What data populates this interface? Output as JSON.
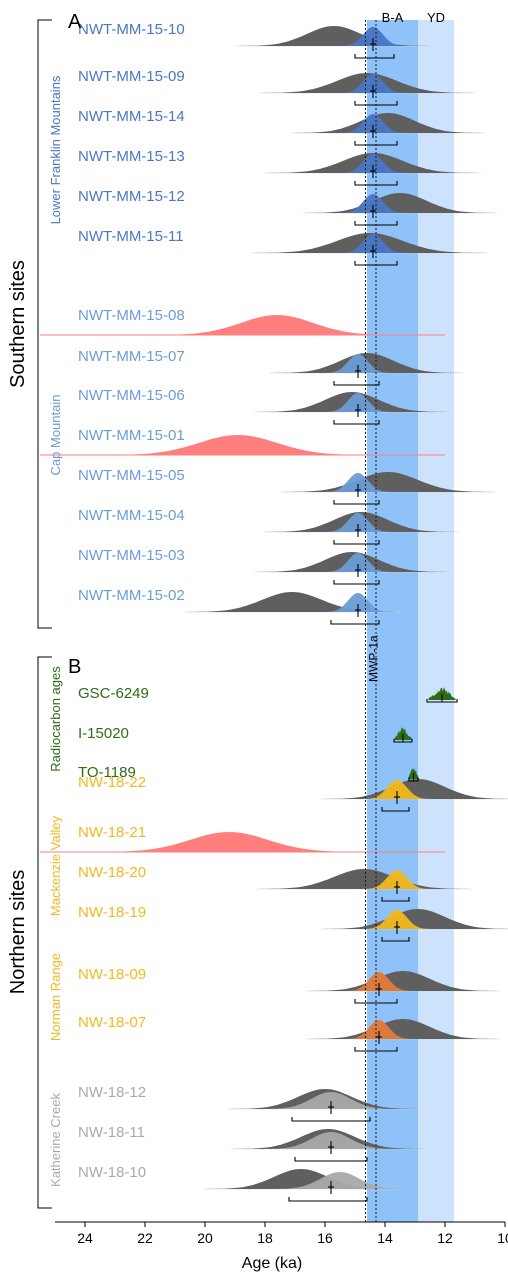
{
  "chart_data": {
    "type": "density-ridgeline",
    "xlabel": "Age (ka)",
    "xlim": [
      25,
      10
    ],
    "xticks": [
      24,
      22,
      20,
      18,
      16,
      14,
      12,
      10
    ],
    "bands": [
      {
        "label": "B-A",
        "from": 14.6,
        "to": 12.9,
        "color": "#90c2fa"
      },
      {
        "label": "YD",
        "from": 12.9,
        "to": 11.7,
        "color": "#cde3fd"
      }
    ],
    "lines": [
      {
        "label": "MWP-1a",
        "x": 14.65,
        "style": "dotted"
      },
      {
        "label": "",
        "x": 14.3,
        "style": "dotted"
      }
    ],
    "groups": [
      {
        "label": "Southern sites",
        "panel": "A"
      },
      {
        "label": "Northern sites",
        "panel": "B"
      }
    ],
    "subgroups": [
      {
        "label": "Lower Franklin Mountains",
        "color": "#4a76c4"
      },
      {
        "label": "Cap Mountain",
        "color": "#6a9cd6"
      },
      {
        "label": "Radiocarbon ages",
        "color": "#2f6a16"
      },
      {
        "label": "Mackenzie Valley",
        "color": "#f2b81d"
      },
      {
        "label": "Norman Range",
        "color": "#f2b81d"
      },
      {
        "label": "Katherine Creek",
        "color": "#a9a9a9"
      }
    ],
    "samples": [
      {
        "name": "NWT-MM-15-10",
        "color": "#4a76c4",
        "gray_peak": 15.7,
        "gray_sd": 0.9,
        "color_peak": 14.4,
        "mean": 14.4,
        "range": [
          15.0,
          13.7
        ]
      },
      {
        "name": "NWT-MM-15-09",
        "color": "#4a76c4",
        "gray_peak": 14.6,
        "gray_sd": 1.0,
        "color_peak": 14.4,
        "mean": 14.4,
        "range": [
          15.0,
          13.6
        ]
      },
      {
        "name": "NWT-MM-15-14",
        "color": "#4a76c4",
        "gray_peak": 13.9,
        "gray_sd": 0.9,
        "color_peak": 14.4,
        "mean": 14.4,
        "range": [
          15.0,
          13.6
        ]
      },
      {
        "name": "NWT-MM-15-13",
        "color": "#4a76c4",
        "gray_peak": 14.4,
        "gray_sd": 1.0,
        "color_peak": 14.4,
        "mean": 14.4,
        "range": [
          15.0,
          13.6
        ]
      },
      {
        "name": "NWT-MM-15-12",
        "color": "#4a76c4",
        "gray_peak": 13.5,
        "gray_sd": 0.9,
        "color_peak": 14.4,
        "mean": 14.4,
        "range": [
          15.0,
          13.6
        ]
      },
      {
        "name": "NWT-MM-15-11",
        "color": "#4a76c4",
        "gray_peak": 14.5,
        "gray_sd": 1.1,
        "color_peak": 14.4,
        "mean": 14.4,
        "range": [
          15.0,
          13.6
        ]
      },
      {
        "name": "NWT-MM-15-08",
        "color": "#6a9cd6",
        "outlier": true,
        "red_peak": 17.6,
        "red_sd": 1.2
      },
      {
        "name": "NWT-MM-15-07",
        "color": "#6a9cd6",
        "gray_peak": 14.6,
        "gray_sd": 0.9,
        "color_peak": 14.9,
        "mean": 14.9,
        "range": [
          15.7,
          14.2
        ]
      },
      {
        "name": "NWT-MM-15-06",
        "color": "#6a9cd6",
        "gray_peak": 15.1,
        "gray_sd": 0.9,
        "color_peak": 14.9,
        "mean": 14.9,
        "range": [
          15.7,
          14.2
        ]
      },
      {
        "name": "NWT-MM-15-01",
        "color": "#6a9cd6",
        "outlier": true,
        "red_peak": 18.9,
        "red_sd": 1.3
      },
      {
        "name": "NWT-MM-15-05",
        "color": "#6a9cd6",
        "gray_peak": 13.9,
        "gray_sd": 1.0,
        "color_peak": 14.9,
        "mean": 14.9,
        "range": [
          15.7,
          14.2
        ]
      },
      {
        "name": "NWT-MM-15-04",
        "color": "#6a9cd6",
        "gray_peak": 14.8,
        "gray_sd": 0.9,
        "color_peak": 14.9,
        "mean": 14.9,
        "range": [
          15.7,
          14.2
        ]
      },
      {
        "name": "NWT-MM-15-03",
        "color": "#6a9cd6",
        "gray_peak": 15.1,
        "gray_sd": 0.9,
        "color_peak": 14.9,
        "mean": 14.9,
        "range": [
          15.7,
          14.2
        ]
      },
      {
        "name": "NWT-MM-15-02",
        "color": "#6a9cd6",
        "gray_peak": 17.1,
        "gray_sd": 1.0,
        "color_peak": 14.9,
        "mean": 14.9,
        "range": [
          15.8,
          14.2
        ]
      },
      {
        "name": "GSC-6249",
        "color": "#2f6a16",
        "radiocarbon": true,
        "peak": 12.1,
        "spread": 0.45,
        "mean": 12.1,
        "range": [
          12.6,
          11.6
        ]
      },
      {
        "name": "I-15020",
        "color": "#2f6a16",
        "radiocarbon": true,
        "peak": 13.4,
        "spread": 0.3,
        "mean": 13.4,
        "range": [
          13.7,
          13.1
        ]
      },
      {
        "name": "TO-1189",
        "color": "#2f6a16",
        "radiocarbon": true,
        "peak": 13.05,
        "spread": 0.18,
        "mean": 13.05,
        "range": [
          13.2,
          12.9
        ]
      },
      {
        "name": "NW-18-22",
        "color": "#f2b81d",
        "gray_peak": 12.9,
        "gray_sd": 0.9,
        "color_peak": 13.6,
        "mean": 13.6,
        "range": [
          14.1,
          13.2
        ]
      },
      {
        "name": "NW-18-21",
        "color": "#f2b81d",
        "outlier": true,
        "red_peak": 19.2,
        "red_sd": 1.3
      },
      {
        "name": "NW-18-20",
        "color": "#f2b81d",
        "gray_peak": 14.7,
        "gray_sd": 1.0,
        "color_peak": 13.6,
        "mean": 13.6,
        "range": [
          14.1,
          13.2
        ]
      },
      {
        "name": "NW-18-19",
        "color": "#f2b81d",
        "gray_peak": 12.9,
        "gray_sd": 0.9,
        "color_peak": 13.6,
        "mean": 13.6,
        "range": [
          14.1,
          13.2
        ]
      },
      {
        "name": "NW-18-09",
        "color": "#f2b81d",
        "gray_peak": 13.4,
        "gray_sd": 0.9,
        "color_peak": 14.2,
        "mean": 14.2,
        "range": [
          15.0,
          13.6
        ]
      },
      {
        "name": "NW-18-07",
        "color": "#f2b81d",
        "gray_peak": 13.4,
        "gray_sd": 0.9,
        "color_peak": 14.2,
        "mean": 14.2,
        "range": [
          15.0,
          13.6
        ]
      },
      {
        "name": "NW-18-12",
        "color": "#a9a9a9",
        "gray_peak": 16.0,
        "gray_sd": 0.9,
        "color_peak": 15.8,
        "mean": 15.8,
        "range": [
          17.1,
          14.5
        ]
      },
      {
        "name": "NW-18-11",
        "color": "#a9a9a9",
        "gray_peak": 15.9,
        "gray_sd": 0.9,
        "color_peak": 15.8,
        "mean": 15.8,
        "range": [
          17.0,
          14.6
        ]
      },
      {
        "name": "NW-18-10",
        "color": "#a9a9a9",
        "gray_peak": 16.8,
        "gray_sd": 0.9,
        "color_peak": 15.5,
        "mean": 15.8,
        "range": [
          17.2,
          14.6
        ]
      }
    ],
    "colors": {
      "gray": "#5f5f5f",
      "outlier": "#ff7f7f"
    }
  },
  "panels": {
    "a": "A",
    "b": "B"
  }
}
